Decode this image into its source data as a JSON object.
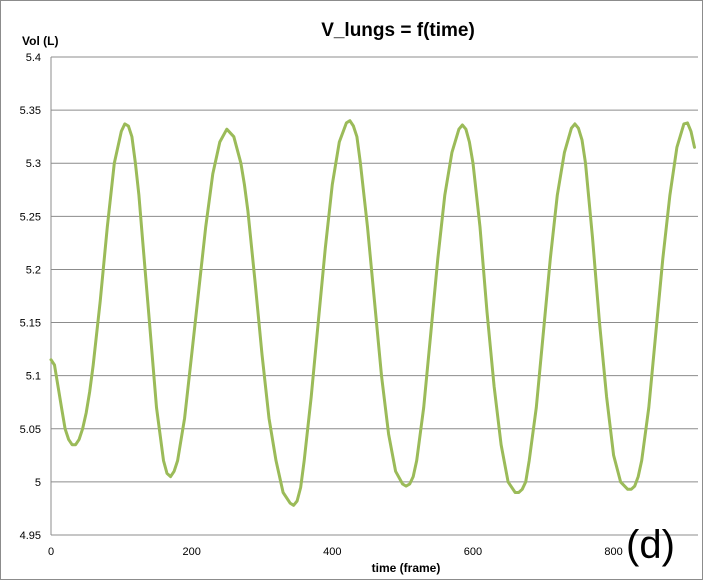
{
  "chart_data": {
    "type": "line",
    "title": "V_lungs = f(time)",
    "xlabel": "time (frame)",
    "ylabel": "Vol (L)",
    "xlim": [
      0,
      920
    ],
    "ylim": [
      4.95,
      5.4
    ],
    "xticks": [
      0,
      200,
      400,
      600,
      800
    ],
    "yticks": [
      4.95,
      5.0,
      5.05,
      5.1,
      5.15,
      5.2,
      5.25,
      5.3,
      5.35,
      5.4
    ],
    "ytick_labels": [
      "4.95",
      "5",
      "5.05",
      "5.1",
      "5.15",
      "5.2",
      "5.25",
      "5.3",
      "5.35",
      "5.4"
    ],
    "grid": "horizontal",
    "legend": "none",
    "line_color": "#9bbb59",
    "panel_label": "(d)",
    "series": [
      {
        "x": [
          0,
          5,
          10,
          15,
          20,
          25,
          30,
          35,
          40,
          45,
          50,
          55,
          60,
          70,
          80,
          90,
          100,
          105,
          110,
          115,
          120,
          125,
          130,
          140,
          150,
          160,
          165,
          170,
          175,
          180,
          190,
          200,
          210,
          220,
          230,
          240,
          250,
          260,
          270,
          275,
          280,
          290,
          300,
          310,
          320,
          330,
          340,
          345,
          350,
          355,
          360,
          370,
          380,
          390,
          400,
          410,
          420,
          425,
          430,
          435,
          440,
          450,
          460,
          470,
          480,
          490,
          500,
          505,
          510,
          515,
          520,
          530,
          540,
          550,
          560,
          570,
          580,
          585,
          590,
          595,
          600,
          610,
          620,
          630,
          640,
          650,
          660,
          665,
          670,
          675,
          680,
          690,
          700,
          710,
          720,
          730,
          740,
          745,
          750,
          755,
          760,
          770,
          780,
          790,
          800,
          810,
          820,
          825,
          830,
          835,
          840,
          850,
          860,
          870,
          880,
          890,
          900,
          905,
          910,
          915
        ],
        "y": [
          5.115,
          5.11,
          5.09,
          5.07,
          5.05,
          5.04,
          5.035,
          5.035,
          5.04,
          5.05,
          5.065,
          5.085,
          5.11,
          5.17,
          5.24,
          5.3,
          5.33,
          5.337,
          5.335,
          5.325,
          5.3,
          5.27,
          5.23,
          5.15,
          5.07,
          5.02,
          5.008,
          5.005,
          5.01,
          5.02,
          5.06,
          5.12,
          5.18,
          5.24,
          5.29,
          5.32,
          5.332,
          5.325,
          5.3,
          5.28,
          5.255,
          5.19,
          5.12,
          5.06,
          5.02,
          4.99,
          4.98,
          4.978,
          4.982,
          4.995,
          5.02,
          5.08,
          5.15,
          5.22,
          5.28,
          5.32,
          5.338,
          5.34,
          5.335,
          5.325,
          5.3,
          5.24,
          5.17,
          5.1,
          5.045,
          5.01,
          4.998,
          4.996,
          4.998,
          5.005,
          5.02,
          5.07,
          5.14,
          5.21,
          5.27,
          5.31,
          5.332,
          5.336,
          5.332,
          5.32,
          5.3,
          5.24,
          5.16,
          5.09,
          5.035,
          5.0,
          4.99,
          4.99,
          4.993,
          5.0,
          5.02,
          5.07,
          5.14,
          5.21,
          5.27,
          5.31,
          5.333,
          5.337,
          5.333,
          5.322,
          5.3,
          5.23,
          5.15,
          5.08,
          5.025,
          5.0,
          4.993,
          4.993,
          4.996,
          5.005,
          5.02,
          5.07,
          5.14,
          5.21,
          5.27,
          5.315,
          5.337,
          5.338,
          5.33,
          5.315
        ]
      }
    ]
  }
}
